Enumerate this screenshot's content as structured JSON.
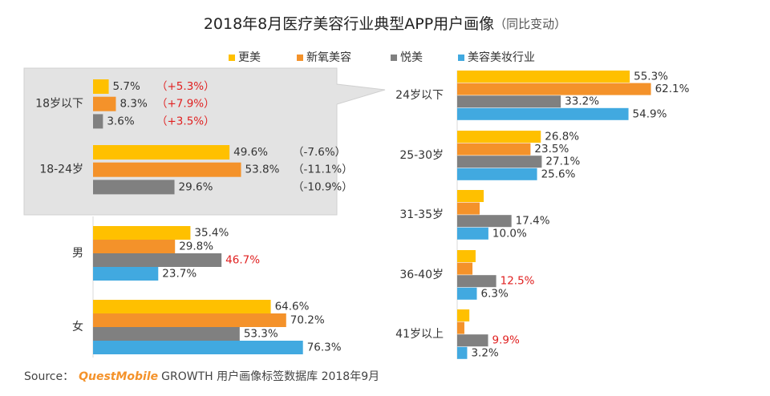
{
  "title": "2018年8月医疗美容行业典型APP用户画像",
  "subtitle": "（同比变动）",
  "source": {
    "label": "Source：",
    "brand": "QuestMobile",
    "text": "GROWTH 用户画像标签数据库 2018年9月"
  },
  "chart_data": [
    {
      "type": "bar",
      "orientation": "horizontal",
      "categories": [
        "18岁以下",
        "18-24岁",
        "男",
        "女"
      ],
      "series": [
        {
          "name": "更美",
          "color": "#ffc000",
          "values": [
            5.7,
            49.6,
            35.4,
            64.6
          ],
          "value_labels": [
            "5.7%",
            "49.6%",
            "35.4%",
            "64.6%"
          ],
          "change_labels": [
            "（+5.3%）",
            "（-7.6%）",
            null,
            null
          ],
          "change_label_colors": [
            "#e02020",
            "#333333",
            null,
            null
          ]
        },
        {
          "name": "新氧美容",
          "color": "#f4922a",
          "values": [
            8.3,
            53.8,
            29.8,
            70.2
          ],
          "value_labels": [
            "8.3%",
            "53.8%",
            "29.8%",
            "70.2%"
          ],
          "change_labels": [
            "（+7.9%）",
            "（-11.1%）",
            null,
            null
          ],
          "change_label_colors": [
            "#e02020",
            "#333333",
            null,
            null
          ]
        },
        {
          "name": "悦美",
          "color": "#808080",
          "values": [
            3.6,
            29.6,
            46.7,
            53.3
          ],
          "value_labels": [
            "3.6%",
            "29.6%",
            "46.7%",
            "53.3%"
          ],
          "value_label_colors": [
            "#333333",
            "#333333",
            "#e02020",
            "#333333"
          ],
          "change_labels": [
            "（+3.5%）",
            "（-10.9%）",
            null,
            null
          ],
          "change_label_colors": [
            "#e02020",
            "#333333",
            null,
            null
          ]
        },
        {
          "name": "美容美妆行业",
          "color": "#41a9e0",
          "values": [
            null,
            null,
            23.7,
            76.3
          ],
          "value_labels": [
            null,
            null,
            "23.7%",
            "76.3%"
          ]
        }
      ]
    },
    {
      "type": "bar",
      "orientation": "horizontal",
      "categories": [
        "24岁以下",
        "25-30岁",
        "31-35岁",
        "36-40岁",
        "41岁以上"
      ],
      "series": [
        {
          "color": "#ffc000",
          "values": [
            55.3,
            26.8,
            8.5,
            5.9,
            3.9
          ],
          "value_labels": [
            "55.3%",
            "26.8%",
            null,
            null,
            null
          ]
        },
        {
          "color": "#f4922a",
          "values": [
            62.1,
            23.5,
            7.2,
            4.9,
            2.3
          ],
          "value_labels": [
            "62.1%",
            "23.5%",
            null,
            null,
            null
          ]
        },
        {
          "color": "#808080",
          "values": [
            33.2,
            27.1,
            17.4,
            12.5,
            9.9
          ],
          "value_labels": [
            "33.2%",
            "27.1%",
            "17.4%",
            "12.5%",
            "9.9%"
          ],
          "value_label_colors": [
            "#333333",
            "#333333",
            "#333333",
            "#e02020",
            "#e02020"
          ]
        },
        {
          "color": "#41a9e0",
          "values": [
            54.9,
            25.6,
            10.0,
            6.3,
            3.2
          ],
          "value_labels": [
            "54.9%",
            "25.6%",
            "10.0%",
            "6.3%",
            "3.2%"
          ]
        }
      ]
    }
  ]
}
